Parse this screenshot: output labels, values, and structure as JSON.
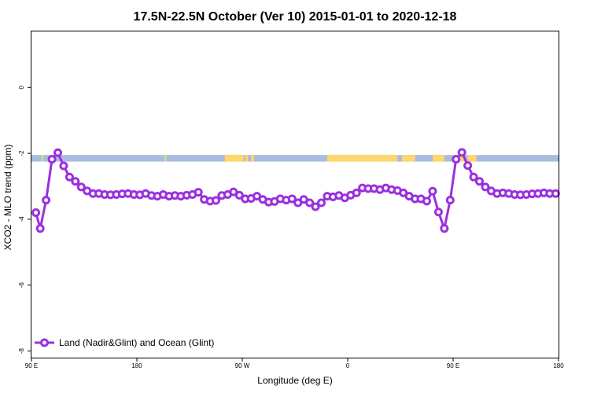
{
  "chart_data": {
    "type": "line",
    "title": "17.5N-22.5N October (Ver 10)   2015-01-01 to 2020-12-18",
    "xlabel": "Longitude (deg E)",
    "ylabel": "XCO2 - MLO trend (ppm)",
    "xlim": [
      0,
      360
    ],
    "ylim": [
      -8.2,
      1.7
    ],
    "x_ticks": [
      {
        "value": 0,
        "label": "90 E"
      },
      {
        "value": 72,
        "label": "180"
      },
      {
        "value": 144,
        "label": "90 W"
      },
      {
        "value": 216,
        "label": "0"
      },
      {
        "value": 288,
        "label": "90 E"
      },
      {
        "value": 360,
        "label": "180"
      }
    ],
    "y_ticks": [
      {
        "value": 0,
        "label": "0"
      },
      {
        "value": -2,
        "label": "-2"
      },
      {
        "value": -4,
        "label": "-4"
      },
      {
        "value": -6,
        "label": "-6"
      },
      {
        "value": -8,
        "label": "-8"
      }
    ],
    "grid": false,
    "legend_position": "bottom-left",
    "surface_strip": {
      "y_range": [
        -2.25,
        -2.05
      ],
      "ocean_color": "#a7bddf",
      "land_color": "#ffd66b",
      "land_x_ranges": [
        [
          7,
          8
        ],
        [
          91,
          92
        ],
        [
          132,
          145
        ],
        [
          146,
          148
        ],
        [
          150,
          152
        ],
        [
          202,
          250
        ],
        [
          253,
          262
        ],
        [
          274,
          282
        ],
        [
          288,
          296
        ],
        [
          298,
          304
        ]
      ]
    },
    "series": [
      {
        "name": "Land (Nadir&Glint) and Ocean (Glint)",
        "color": "#9b30e0",
        "x": [
          3,
          6,
          10,
          14,
          18,
          22,
          26,
          30,
          34,
          38,
          42,
          46,
          50,
          54,
          58,
          62,
          66,
          70,
          74,
          78,
          82,
          86,
          90,
          94,
          98,
          102,
          106,
          110,
          114,
          118,
          122,
          126,
          130,
          134,
          138,
          142,
          146,
          150,
          154,
          158,
          162,
          166,
          170,
          174,
          178,
          182,
          186,
          190,
          194,
          198,
          202,
          206,
          210,
          214,
          218,
          222,
          226,
          230,
          234,
          238,
          242,
          246,
          250,
          254,
          258,
          262,
          266,
          270,
          274,
          278,
          282,
          286,
          290,
          294,
          298,
          302,
          306,
          310,
          314,
          318,
          322,
          326,
          330,
          334,
          338,
          342,
          346,
          350,
          354,
          358
        ],
        "y": [
          -3.8,
          -4.28,
          -3.42,
          -2.18,
          -1.98,
          -2.38,
          -2.72,
          -2.85,
          -3.02,
          -3.14,
          -3.22,
          -3.22,
          -3.25,
          -3.26,
          -3.25,
          -3.23,
          -3.22,
          -3.25,
          -3.26,
          -3.22,
          -3.28,
          -3.3,
          -3.25,
          -3.3,
          -3.28,
          -3.3,
          -3.27,
          -3.25,
          -3.18,
          -3.4,
          -3.45,
          -3.43,
          -3.28,
          -3.25,
          -3.17,
          -3.27,
          -3.38,
          -3.37,
          -3.3,
          -3.4,
          -3.48,
          -3.46,
          -3.38,
          -3.42,
          -3.38,
          -3.5,
          -3.4,
          -3.5,
          -3.62,
          -3.5,
          -3.3,
          -3.32,
          -3.28,
          -3.35,
          -3.27,
          -3.2,
          -3.05,
          -3.07,
          -3.07,
          -3.1,
          -3.05,
          -3.1,
          -3.13,
          -3.2,
          -3.3,
          -3.38,
          -3.38,
          -3.45,
          -3.15,
          -3.78,
          -4.28,
          -3.42,
          -2.18,
          -1.97,
          -2.37,
          -2.72,
          -2.85,
          -3.02,
          -3.14,
          -3.22,
          -3.2,
          -3.22,
          -3.25,
          -3.26,
          -3.25,
          -3.23,
          -3.22,
          -3.2,
          -3.22,
          -3.22
        ]
      }
    ]
  }
}
